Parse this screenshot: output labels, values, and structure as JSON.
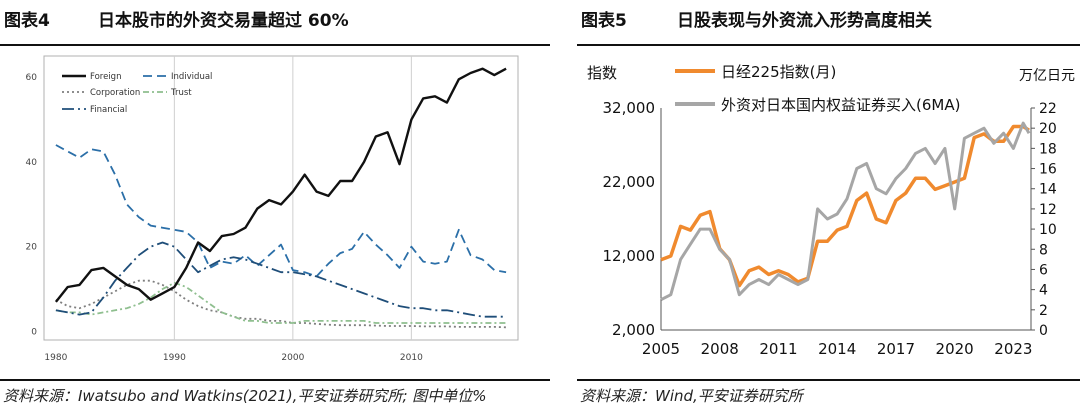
{
  "left": {
    "fig_num": "图表4",
    "fig_title": "日本股市的外资交易量超过 60%",
    "source": "资料来源：Iwatsubo and Watkins(2021),平安证券研究所; 图中单位%"
  },
  "right": {
    "fig_num": "图表5",
    "fig_title": "日股表现与外资流入形势高度相关",
    "source": "资料来源：Wind,平安证券研究所"
  },
  "chart_data": [
    {
      "type": "line",
      "title": "日本股市的外资交易量超过 60%",
      "x_ticks": [
        1980,
        1990,
        2000,
        2010
      ],
      "y_ticks": [
        0,
        20,
        40,
        60
      ],
      "xlim": [
        1979,
        2019
      ],
      "ylim": [
        -2,
        65
      ],
      "grid": "vertical at 1990, 2000, 2010",
      "legend_position": "top-left",
      "x": [
        1980,
        1981,
        1982,
        1983,
        1984,
        1985,
        1986,
        1987,
        1988,
        1989,
        1990,
        1991,
        1992,
        1993,
        1994,
        1995,
        1996,
        1997,
        1998,
        1999,
        2000,
        2001,
        2002,
        2003,
        2004,
        2005,
        2006,
        2007,
        2008,
        2009,
        2010,
        2011,
        2012,
        2013,
        2014,
        2015,
        2016,
        2017,
        2018
      ],
      "series": [
        {
          "name": "Foreign",
          "color": "#111111",
          "dash": "solid",
          "values": [
            7,
            10.5,
            11,
            14.5,
            15,
            13,
            11,
            10,
            7.5,
            9,
            10.5,
            15,
            21,
            19,
            22.5,
            23,
            24.5,
            29,
            31,
            30,
            33,
            37,
            33,
            32,
            35.5,
            35.5,
            40,
            46,
            47,
            39.5,
            50,
            55,
            55.5,
            54,
            59.5,
            61,
            62,
            60.5,
            62
          ]
        },
        {
          "name": "Individual",
          "color": "#2b6fa8",
          "dash": "dashed",
          "values": [
            44,
            42.5,
            41,
            43,
            42.5,
            37,
            30,
            27,
            25,
            24.5,
            24,
            23.5,
            21,
            15,
            16.5,
            16,
            18,
            15.5,
            18,
            20.5,
            14.5,
            14,
            13,
            16,
            18.5,
            19.5,
            23.5,
            20.5,
            18,
            15,
            20,
            16.5,
            16,
            16.5,
            24,
            18,
            17,
            14.5,
            14
          ]
        },
        {
          "name": "Corporation",
          "color": "#7f7f7f",
          "dash": "dotted",
          "values": [
            7.5,
            6,
            5.5,
            6.5,
            8,
            9.5,
            11,
            12,
            12,
            11,
            9.5,
            7.5,
            6,
            5,
            4.5,
            3.5,
            3,
            3,
            2.5,
            2.5,
            2,
            2,
            1.8,
            1.6,
            1.5,
            1.5,
            1.5,
            1.4,
            1.3,
            1.3,
            1.3,
            1.2,
            1.2,
            1.2,
            1.1,
            1.1,
            1.1,
            1.1,
            1.0
          ]
        },
        {
          "name": "Trust",
          "color": "#8fbf8f",
          "dash": "dashdot",
          "values": [
            5,
            4.5,
            4.5,
            4,
            4.5,
            5,
            5.5,
            6.5,
            8,
            10,
            11.5,
            10.5,
            8.5,
            6.5,
            4.5,
            3.5,
            2.5,
            2.5,
            2,
            2,
            2,
            2.5,
            2.5,
            2.5,
            2.5,
            2.5,
            2.5,
            2,
            2,
            2,
            2,
            2,
            2,
            2,
            2,
            2,
            2,
            2,
            2
          ]
        },
        {
          "name": "Financial",
          "color": "#1f4e79",
          "dash": "longdashdot",
          "values": [
            5,
            4.5,
            4,
            4.5,
            8,
            12,
            15,
            18,
            20,
            21,
            20,
            17,
            14,
            15.5,
            17,
            17.5,
            17,
            16,
            15,
            14,
            14,
            13.5,
            13,
            12,
            11,
            10,
            9,
            8,
            7,
            6,
            5.5,
            5.5,
            5,
            5,
            4.5,
            4,
            3.5,
            3.5,
            3.5
          ]
        }
      ]
    },
    {
      "type": "line",
      "title": "日股表现与外资流入形势高度相关",
      "left_axis_label": "指数",
      "right_axis_label": "万亿日元",
      "x_ticks": [
        "2005",
        "2008",
        "2011",
        "2014",
        "2017",
        "2020",
        "2023"
      ],
      "left_ticks": [
        "2,000",
        "12,000",
        "22,000",
        "32,000"
      ],
      "left_range": [
        2000,
        32000
      ],
      "right_ticks": [
        0,
        2,
        4,
        6,
        8,
        10,
        12,
        14,
        16,
        18,
        20,
        22
      ],
      "right_range": [
        0,
        22
      ],
      "xlim": [
        2005,
        2023.9
      ],
      "legend_position": "top",
      "series": [
        {
          "name": "日经225指数(月)",
          "axis": "left",
          "color": "#f08a2e",
          "width": 3.5,
          "x": [
            2005,
            2005.5,
            2006,
            2006.5,
            2007,
            2007.5,
            2008,
            2008.5,
            2009,
            2009.5,
            2010,
            2010.5,
            2011,
            2011.5,
            2012,
            2012.5,
            2013,
            2013.5,
            2014,
            2014.5,
            2015,
            2015.5,
            2016,
            2016.5,
            2017,
            2017.5,
            2018,
            2018.5,
            2019,
            2019.5,
            2020,
            2020.5,
            2021,
            2021.5,
            2022,
            2022.5,
            2023,
            2023.5,
            2023.8
          ],
          "values": [
            11500,
            12000,
            16000,
            15500,
            17500,
            18000,
            13000,
            11500,
            8000,
            10000,
            10500,
            9500,
            10000,
            9500,
            8500,
            9000,
            14000,
            14000,
            15500,
            16000,
            19500,
            20500,
            17000,
            16500,
            19500,
            20500,
            22500,
            22500,
            21000,
            21500,
            22000,
            22500,
            28000,
            28500,
            27500,
            27500,
            29500,
            29500,
            29000
          ]
        },
        {
          "name": "外资对日本国内权益证券买入(6MA)",
          "axis": "right",
          "color": "#a6a6a6",
          "width": 3,
          "x": [
            2005,
            2005.5,
            2006,
            2006.5,
            2007,
            2007.5,
            2008,
            2008.5,
            2009,
            2009.5,
            2010,
            2010.5,
            2011,
            2011.5,
            2012,
            2012.5,
            2013,
            2013.5,
            2014,
            2014.5,
            2015,
            2015.5,
            2016,
            2016.5,
            2017,
            2017.5,
            2018,
            2018.5,
            2019,
            2019.5,
            2020,
            2020.5,
            2021,
            2021.5,
            2022,
            2022.5,
            2023,
            2023.5,
            2023.8
          ],
          "values": [
            3,
            3.5,
            7,
            8.5,
            10,
            10,
            8,
            7,
            3.5,
            4.5,
            5,
            4.5,
            5.5,
            5,
            4.5,
            5,
            12,
            11,
            11.5,
            13,
            16,
            16.5,
            14,
            13.5,
            15,
            16,
            17.5,
            18,
            16.5,
            18,
            12,
            19,
            19.5,
            20,
            18.5,
            19.5,
            18,
            20.5,
            19.5
          ]
        }
      ]
    }
  ]
}
